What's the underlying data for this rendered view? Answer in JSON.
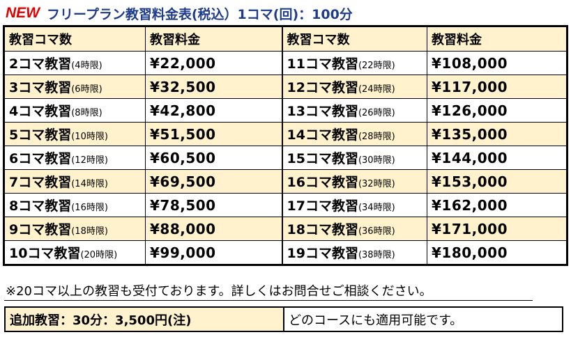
{
  "title": {
    "new_label": "NEW",
    "text": "フリープラン教習料金表(税込）1コマ(回)：100分"
  },
  "headers": [
    "教習コマ数",
    "教習料金",
    "教習コマ数",
    "教習料金"
  ],
  "rows": [
    {
      "left_count": "2コマ教習",
      "left_hours": "(4時限)",
      "left_price": "¥22,000",
      "right_count": "11コマ教習",
      "right_hours": "(22時限)",
      "right_price": "¥108,000"
    },
    {
      "left_count": "3コマ教習",
      "left_hours": "(6時限)",
      "left_price": "¥32,500",
      "right_count": "12コマ教習",
      "right_hours": "(24時限)",
      "right_price": "¥117,000"
    },
    {
      "left_count": "4コマ教習",
      "left_hours": "(8時限)",
      "left_price": "¥42,800",
      "right_count": "13コマ教習",
      "right_hours": "(26時限)",
      "right_price": "¥126,000"
    },
    {
      "left_count": "5コマ教習",
      "left_hours": "(10時限)",
      "left_price": "¥51,500",
      "right_count": "14コマ教習",
      "right_hours": "(28時限)",
      "right_price": "¥135,000"
    },
    {
      "left_count": "6コマ教習",
      "left_hours": "(12時限)",
      "left_price": "¥60,500",
      "right_count": "15コマ教習",
      "right_hours": "(30時限)",
      "right_price": "¥144,000"
    },
    {
      "left_count": "7コマ教習",
      "left_hours": "(14時限)",
      "left_price": "¥69,500",
      "right_count": "16コマ教習",
      "right_hours": "(32時限)",
      "right_price": "¥153,000"
    },
    {
      "left_count": "8コマ教習",
      "left_hours": "(16時限)",
      "left_price": "¥78,500",
      "right_count": "17コマ教習",
      "right_hours": "(34時限)",
      "right_price": "¥162,000"
    },
    {
      "left_count": "9コマ教習",
      "left_hours": "(18時限)",
      "left_price": "¥88,000",
      "right_count": "18コマ教習",
      "right_hours": "(36時限)",
      "right_price": "¥171,000"
    },
    {
      "left_count": "10コマ教習",
      "left_hours": "(20時限)",
      "left_price": "¥99,000",
      "right_count": "19コマ教習",
      "right_hours": "(38時限)",
      "right_price": "¥180,000"
    }
  ],
  "note": "※20コマ以上の教習も受付ております。詳しくはお問合せご相談ください。",
  "extra": {
    "label": "追加教習：30分：3,500円(注)",
    "description": "どのコースにも適用可能です。"
  },
  "colors": {
    "new": "#e00000",
    "title": "#1f3c8a",
    "highlight": "#fff2cc"
  }
}
